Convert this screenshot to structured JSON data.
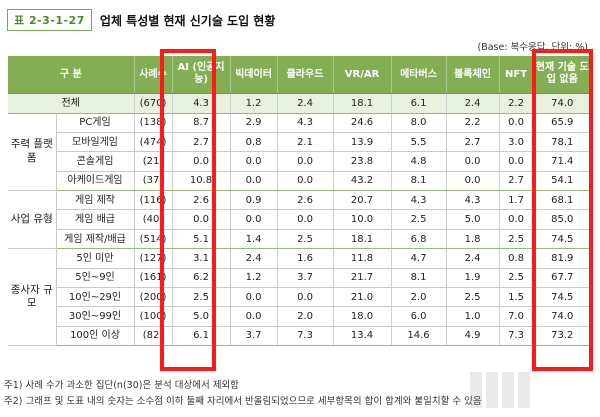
{
  "header": {
    "tag": "표 2-3-1-27",
    "title": "업체 특성별 현재 신기술 도입 현황"
  },
  "unit_note": "(Base: 복수응답, 단위: %)",
  "table": {
    "columns": [
      "구    분",
      "사례수",
      "AI (인공지능)",
      "빅데이터",
      "클라우드",
      "VR/AR",
      "메타버스",
      "블록체인",
      "NFT",
      "현재 기술 도입 없음"
    ],
    "total": {
      "label": "전체",
      "n": "(670)",
      "values": [
        "4.3",
        "1.2",
        "2.4",
        "18.1",
        "6.1",
        "2.4",
        "2.2",
        "74.0"
      ]
    },
    "groups": [
      {
        "name": "주력 플랫폼",
        "rows": [
          {
            "label": "PC게임",
            "n": "(138)",
            "values": [
              "8.7",
              "2.9",
              "4.3",
              "24.6",
              "8.0",
              "2.2",
              "0.0",
              "65.9"
            ]
          },
          {
            "label": "모바일게임",
            "n": "(474)",
            "values": [
              "2.7",
              "0.8",
              "2.1",
              "13.9",
              "5.5",
              "2.7",
              "3.0",
              "78.1"
            ]
          },
          {
            "label": "콘솔게임",
            "n": "(21)",
            "values": [
              "0.0",
              "0.0",
              "0.0",
              "23.8",
              "4.8",
              "0.0",
              "0.0",
              "71.4"
            ]
          },
          {
            "label": "아케이드게임",
            "n": "(37)",
            "values": [
              "10.8",
              "0.0",
              "0.0",
              "43.2",
              "8.1",
              "0.0",
              "2.7",
              "54.1"
            ]
          }
        ]
      },
      {
        "name": "사업 유형",
        "rows": [
          {
            "label": "게임 제작",
            "n": "(116)",
            "values": [
              "2.6",
              "0.9",
              "2.6",
              "20.7",
              "4.3",
              "4.3",
              "1.7",
              "68.1"
            ]
          },
          {
            "label": "게임 배급",
            "n": "(40)",
            "values": [
              "0.0",
              "0.0",
              "0.0",
              "10.0",
              "2.5",
              "5.0",
              "0.0",
              "85.0"
            ]
          },
          {
            "label": "게임 제작/배급",
            "n": "(514)",
            "values": [
              "5.1",
              "1.4",
              "2.5",
              "18.1",
              "6.8",
              "1.8",
              "2.5",
              "74.5"
            ]
          }
        ]
      },
      {
        "name": "종사자 규모",
        "rows": [
          {
            "label": "5인 미만",
            "n": "(127)",
            "values": [
              "3.1",
              "2.4",
              "1.6",
              "11.8",
              "4.7",
              "2.4",
              "0.8",
              "81.9"
            ]
          },
          {
            "label": "5인~9인",
            "n": "(161)",
            "values": [
              "6.2",
              "1.2",
              "3.7",
              "21.7",
              "8.1",
              "1.9",
              "2.5",
              "67.7"
            ]
          },
          {
            "label": "10인~29인",
            "n": "(200)",
            "values": [
              "2.5",
              "0.0",
              "0.0",
              "21.0",
              "2.0",
              "2.5",
              "1.5",
              "74.5"
            ]
          },
          {
            "label": "30인~99인",
            "n": "(100)",
            "values": [
              "5.0",
              "0.0",
              "2.0",
              "18.0",
              "6.0",
              "1.0",
              "7.0",
              "74.0"
            ]
          },
          {
            "label": "100인 이상",
            "n": "(82)",
            "values": [
              "6.1",
              "3.7",
              "7.3",
              "13.4",
              "14.6",
              "4.9",
              "7.3",
              "73.2"
            ]
          }
        ]
      }
    ]
  },
  "notes": [
    "주1) 사례 수가 과소한 집단(n(30)은 분석 대상에서 제외함",
    "주2) 그래프 및 도표 내의 숫자는 소수점 이하 둘째 자리에서 반올림되었으므로 세부항목의 합이 합계와 불일치할 수 있음"
  ],
  "highlight_color": "#ff1a1a",
  "header_color": "#84ae54"
}
